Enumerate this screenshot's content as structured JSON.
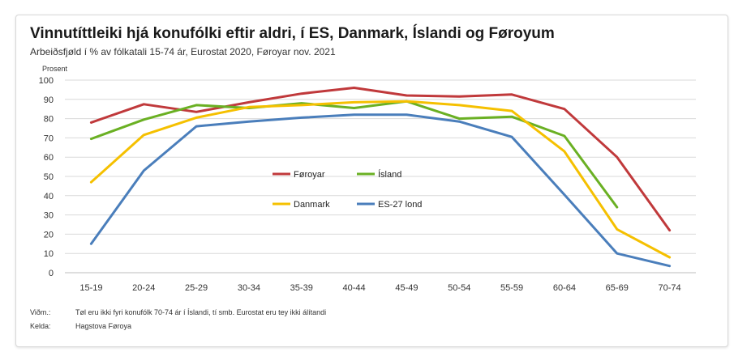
{
  "title": "Vinnutíttleiki hjá konufólki eftir aldri, í ES, Danmark, Íslandi og Føroyum",
  "subtitle": "Arbeiðsfjøld í % av fólkatali 15-74 ár, Eurostat 2020, Føroyar nov. 2021",
  "notes": [
    {
      "key": "Viðm.:",
      "text": "Tøl eru ikki fyri konufólk 70-74 ár í Íslandi, tí smb. Eurostat eru tey ikki álítandi"
    },
    {
      "key": "Kelda:",
      "text": "Hagstova Føroya"
    }
  ],
  "chart_data": {
    "type": "line",
    "ylabel": "Prosent",
    "xlabel": "",
    "ylim": [
      0,
      100
    ],
    "yticks": [
      "0",
      "10",
      "20",
      "30",
      "40",
      "50",
      "60",
      "70",
      "80",
      "90",
      "100"
    ],
    "grid": true,
    "categories": [
      "15-19",
      "20-24",
      "25-29",
      "30-34",
      "35-39",
      "40-44",
      "45-49",
      "50-54",
      "55-59",
      "60-64",
      "65-69",
      "70-74"
    ],
    "series": [
      {
        "name": "Føroyar",
        "color": "#c0393b",
        "values": [
          78,
          87.5,
          83.5,
          88.5,
          93,
          96,
          92,
          91.5,
          92.5,
          85,
          60,
          22
        ]
      },
      {
        "name": "Ísland",
        "color": "#6ab023",
        "values": [
          69.5,
          79.5,
          87,
          85.5,
          88,
          85.5,
          89,
          80,
          81,
          71,
          34,
          null
        ]
      },
      {
        "name": "Danmark",
        "color": "#f5c000",
        "values": [
          47,
          71.5,
          80.5,
          86,
          87,
          88.5,
          89,
          87,
          84,
          63,
          22.5,
          8
        ]
      },
      {
        "name": "ES-27 lond",
        "color": "#4a7ebb",
        "values": [
          15,
          53,
          76,
          78.5,
          80.5,
          82,
          82,
          78.5,
          70.5,
          40.5,
          10,
          3.5
        ]
      }
    ]
  }
}
